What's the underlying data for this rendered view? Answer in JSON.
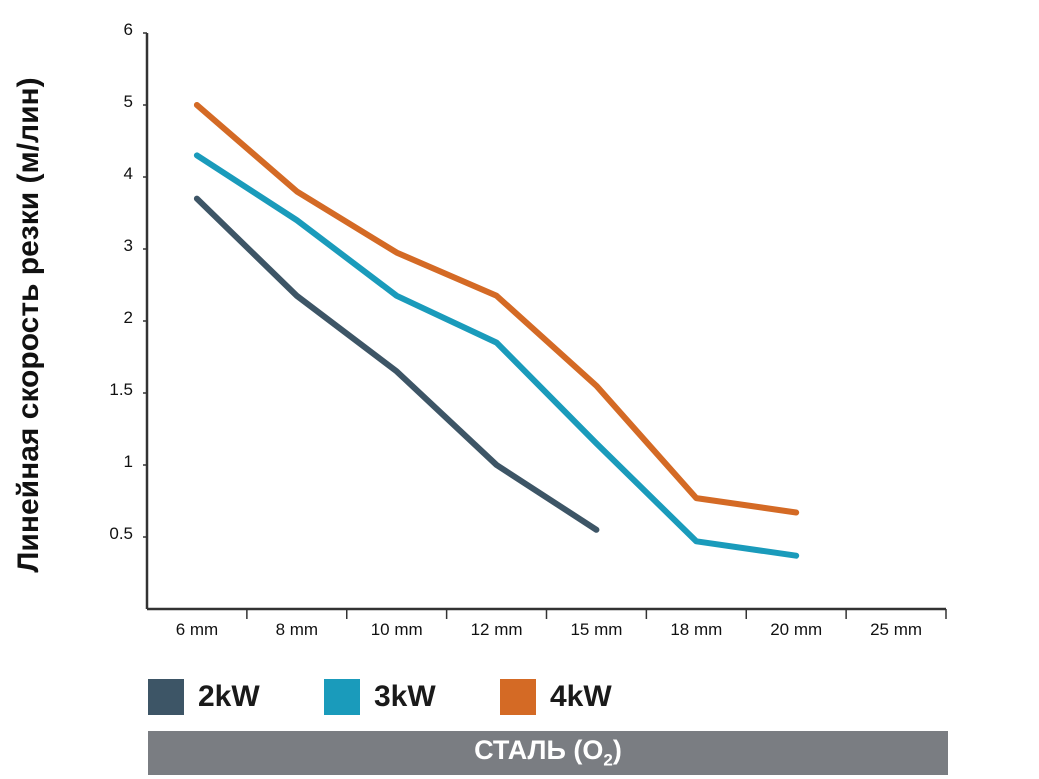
{
  "chart_data": {
    "type": "line",
    "ylabel": "Линейная скорость резки (м/лин)",
    "categories": [
      "6 mm",
      "8 mm",
      "10 mm",
      "12 mm",
      "15 mm",
      "18 mm",
      "20 mm",
      "25 mm"
    ],
    "y_ticks": [
      "0.5",
      "1",
      "1.5",
      "2",
      "3",
      "4",
      "5",
      "6"
    ],
    "series": [
      {
        "name": "2kW",
        "color": "#3d5566",
        "values": [
          3.7,
          2.35,
          1.65,
          1.0,
          0.55,
          null,
          null,
          null
        ]
      },
      {
        "name": "3kW",
        "color": "#1a9bbb",
        "values": [
          4.3,
          3.4,
          2.35,
          1.85,
          1.15,
          0.47,
          0.37,
          null
        ]
      },
      {
        "name": "4kW",
        "color": "#d46a25",
        "values": [
          5.0,
          3.8,
          2.95,
          2.35,
          1.55,
          0.77,
          0.67,
          null
        ]
      }
    ],
    "grid": false,
    "legend_position": "bottom"
  },
  "legend": {
    "items": [
      {
        "label": "2kW",
        "color": "#3d5566"
      },
      {
        "label": "3kW",
        "color": "#1a9bbb"
      },
      {
        "label": "4kW",
        "color": "#d46a25"
      }
    ]
  },
  "footer": {
    "material": "СТАЛЬ",
    "gas_open": "(O",
    "gas_sub": "2",
    "gas_close": ")"
  }
}
